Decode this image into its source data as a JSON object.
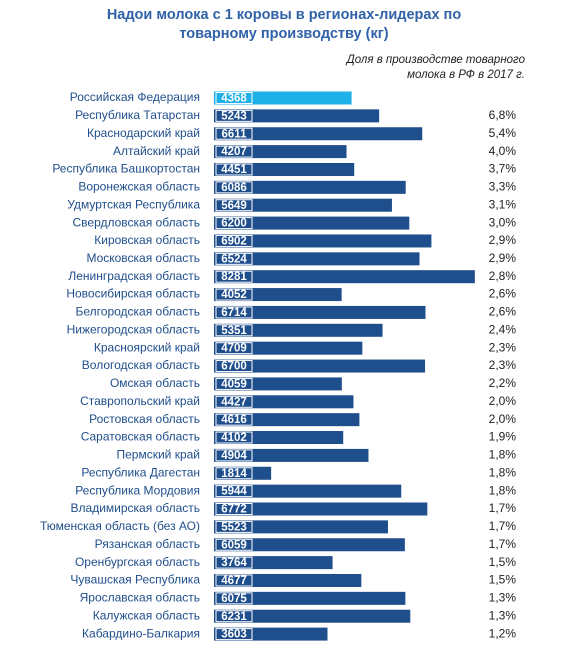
{
  "chart_data": {
    "type": "bar",
    "orientation": "horizontal",
    "title": [
      "Надои молока с 1 коровы в регионах-лидерах по",
      "товарному производству (кг)"
    ],
    "categories": [
      "Российская Федерация",
      "Республика Татарстан",
      "Краснодарский край",
      "Алтайский край",
      "Республика Башкортостан",
      "Воронежская область",
      "Удмуртская Республика",
      "Свердловская область",
      "Кировская область",
      "Московская область",
      "Ленинградская область",
      "Новосибирская область",
      "Белгородская область",
      "Нижегородская область",
      "Красноярский край",
      "Вологодская область",
      "Омская область",
      "Ставропольский край",
      "Ростовская область",
      "Саратовская область",
      "Пермский край",
      "Республика Дагестан",
      "Республика Мордовия",
      "Владимирская область",
      "Тюменская область (без АО)",
      "Рязанская область",
      "Оренбургская область",
      "Чувашская Республика",
      "Ярославская область",
      "Калужская область",
      "Кабардино-Балкария"
    ],
    "values": [
      4368,
      5243,
      6611,
      4207,
      4451,
      6086,
      5649,
      6200,
      6902,
      6524,
      8281,
      4052,
      6714,
      5351,
      4709,
      6700,
      4059,
      4427,
      4616,
      4102,
      4904,
      1814,
      5944,
      6772,
      5523,
      6059,
      3764,
      4677,
      6075,
      6231,
      3603
    ],
    "colors": [
      "#1eb0e6",
      "#1f4e8c"
    ],
    "share": {
      "name": [
        "Доля в производстве товарного",
        "молока в РФ в 2017 г."
      ],
      "values": [
        null,
        6.8,
        5.4,
        4.0,
        3.7,
        3.3,
        3.1,
        3.0,
        2.9,
        2.9,
        2.8,
        2.6,
        2.6,
        2.4,
        2.3,
        2.3,
        2.2,
        2.0,
        2.0,
        1.9,
        1.8,
        1.8,
        1.8,
        1.7,
        1.7,
        1.7,
        1.5,
        1.5,
        1.3,
        1.3,
        1.2
      ],
      "value_labels": [
        null,
        "6,8%",
        "5,4%",
        "4,0%",
        "3,7%",
        "3,3%",
        "3,1%",
        "3,0%",
        "2,9%",
        "2,9%",
        "2,8%",
        "2,6%",
        "2,6%",
        "2,4%",
        "2,3%",
        "2,3%",
        "2,2%",
        "2,0%",
        "2,0%",
        "1,9%",
        "1,8%",
        "1,8%",
        "1,8%",
        "1,7%",
        "1,7%",
        "1,7%",
        "1,5%",
        "1,5%",
        "1,3%",
        "1,3%",
        "1,2%"
      ]
    }
  }
}
